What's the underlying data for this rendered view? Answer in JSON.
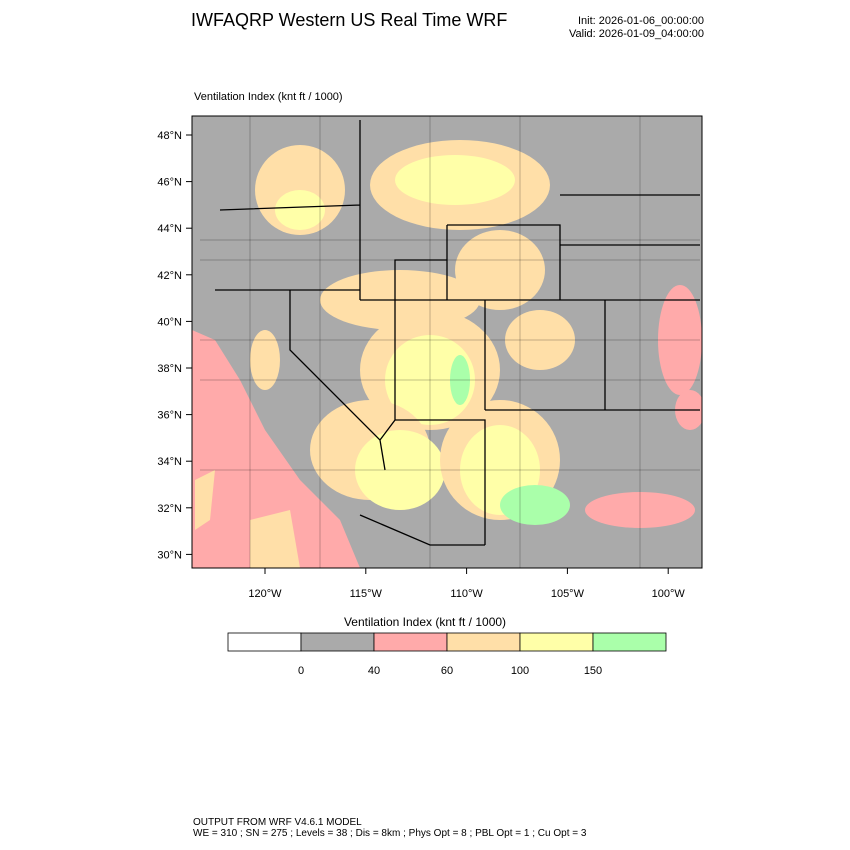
{
  "header": {
    "title": "IWFAQRP Western US Real Time WRF",
    "init": "Init: 2026-01-06_00:00:00",
    "valid": "Valid: 2026-01-09_04:00:00"
  },
  "field_label": "Ventilation Index   (knt ft / 1000)",
  "map": {
    "lat_ticks": [
      "48°N",
      "46°N",
      "44°N",
      "42°N",
      "40°N",
      "38°N",
      "36°N",
      "34°N",
      "32°N",
      "30°N"
    ],
    "lon_ticks": [
      "120°W",
      "115°W",
      "110°W",
      "105°W",
      "100°W"
    ],
    "region": "Western US"
  },
  "colorbar": {
    "title": "Ventilation Index  (knt ft / 1000)",
    "bins": [
      {
        "color": "#ffffff"
      },
      {
        "color": "#aaaaaa"
      },
      {
        "color": "#ffaaaa"
      },
      {
        "color": "#ffdfa8"
      },
      {
        "color": "#ffffa8"
      },
      {
        "color": "#aaffaa"
      }
    ],
    "labels": [
      "0",
      "40",
      "60",
      "100",
      "150"
    ]
  },
  "footer": {
    "line1": "OUTPUT FROM WRF V4.6.1 MODEL",
    "line2": "WE = 310 ; SN = 275 ; Levels = 38 ; Dis = 8km ; Phys Opt = 8 ; PBL Opt = 1 ; Cu Opt = 3"
  }
}
